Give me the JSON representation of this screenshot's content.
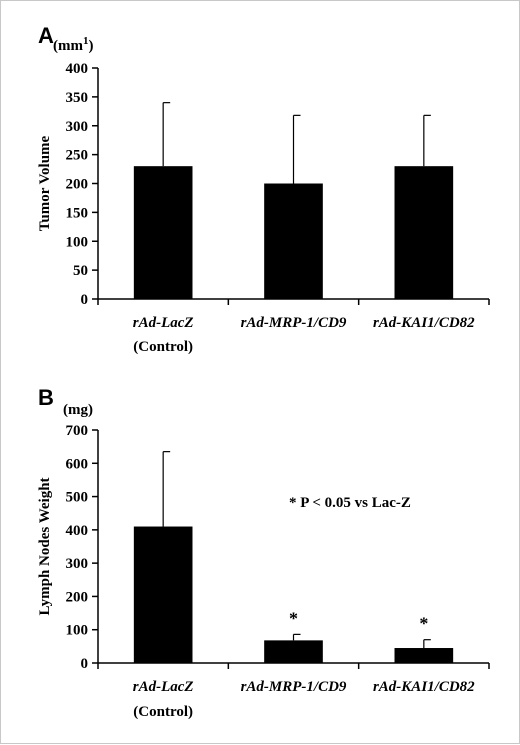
{
  "chart_data": [
    {
      "type": "bar",
      "panel_label": "A",
      "unit_label": "(mm",
      "unit_superscript": "1",
      "unit_close": ")",
      "ylabel": "Tumor Volume",
      "ylim": [
        0,
        400
      ],
      "yticks": [
        0,
        50,
        100,
        150,
        200,
        250,
        300,
        350,
        400
      ],
      "categories": [
        {
          "line1": "rAd-LacZ",
          "line2": "(Control)"
        },
        {
          "line1": "rAd-MRP-1/CD9",
          "line2": ""
        },
        {
          "line1": "rAd-KAI1/CD82",
          "line2": ""
        }
      ],
      "values": [
        230,
        200,
        230
      ],
      "errors": [
        110,
        118,
        88
      ],
      "bar_color": "#000000",
      "significance": [
        false,
        false,
        false
      ],
      "annotation": ""
    },
    {
      "type": "bar",
      "panel_label": "B",
      "unit_label": "(mg)",
      "unit_superscript": "",
      "unit_close": "",
      "ylabel": "Lymph Nodes Weight",
      "ylim": [
        0,
        700
      ],
      "yticks": [
        0,
        100,
        200,
        300,
        400,
        500,
        600,
        700
      ],
      "categories": [
        {
          "line1": "rAd-LacZ",
          "line2": "(Control)"
        },
        {
          "line1": "rAd-MRP-1/CD9",
          "line2": ""
        },
        {
          "line1": "rAd-KAI1/CD82",
          "line2": ""
        }
      ],
      "values": [
        410,
        68,
        45
      ],
      "errors": [
        225,
        18,
        25
      ],
      "bar_color": "#000000",
      "significance": [
        false,
        true,
        true
      ],
      "significance_marker": "*",
      "annotation": "* P < 0.05 vs Lac-Z"
    }
  ]
}
